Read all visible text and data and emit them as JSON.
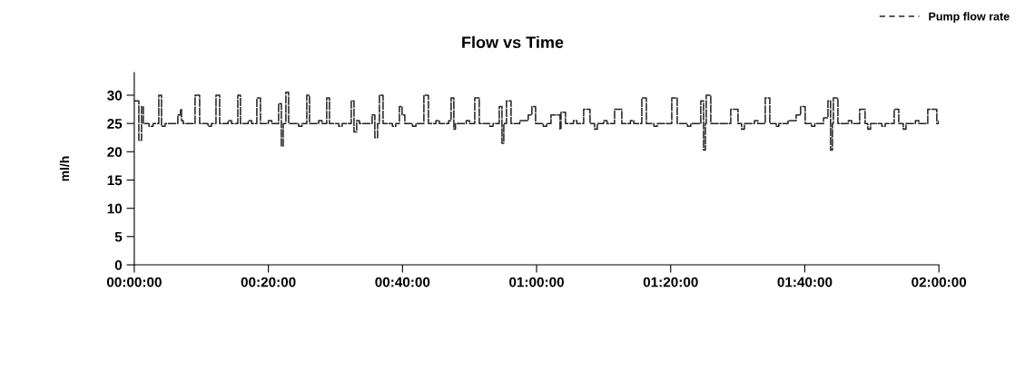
{
  "chart_data": {
    "type": "step",
    "title": "Flow vs Time",
    "ylabel": "ml/h",
    "xlim": [
      0,
      120
    ],
    "xticks": [
      {
        "value": 0,
        "label": "00:00:00"
      },
      {
        "value": 20,
        "label": "00:20:00"
      },
      {
        "value": 40,
        "label": "00:40:00"
      },
      {
        "value": 60,
        "label": "01:00:00"
      },
      {
        "value": 80,
        "label": "01:20:00"
      },
      {
        "value": 100,
        "label": "01:40:00"
      },
      {
        "value": 120,
        "label": "02:00:00"
      }
    ],
    "ylim": [
      0,
      34
    ],
    "yticks": [
      0,
      5,
      10,
      15,
      20,
      25,
      30
    ],
    "grid": false,
    "legend": "top right",
    "line_style": "dashed",
    "series": [
      {
        "name": "Pump flow rate",
        "color": "#222222",
        "x": [
          0,
          0.68,
          1.08,
          1.35,
          2.2,
          2.8,
          3.66,
          4.06,
          4.6,
          6.5,
          6.9,
          7.04,
          7.3,
          9.07,
          9.75,
          11,
          11.5,
          12.19,
          12.73,
          14,
          14.5,
          15.44,
          15.84,
          17,
          17.5,
          18.28,
          18.82,
          20,
          20.5,
          21.53,
          21.93,
          22.21,
          22.61,
          23.02,
          24.5,
          25,
          25.73,
          26.13,
          27.5,
          28,
          28.7,
          29.11,
          30.5,
          31,
          32.36,
          32.77,
          33.17,
          33.58,
          35.47,
          35.88,
          36.29,
          36.56,
          37.1,
          38.5,
          39,
          39.54,
          39.94,
          40.35,
          41.5,
          42,
          43.19,
          43.87,
          45,
          45.5,
          46.9,
          47.25,
          47.66,
          47.9,
          49.5,
          50,
          50.78,
          51.45,
          53,
          53.5,
          54.43,
          54.84,
          55.11,
          55.51,
          56.19,
          57.5,
          58.76,
          59.3,
          59.85,
          61,
          61.5,
          62.15,
          63.5,
          63.64,
          64.31,
          65.5,
          66,
          67.02,
          67.97,
          68.65,
          69.05,
          70,
          70.5,
          71.63,
          72.71,
          74,
          74.5,
          75.69,
          76.37,
          77.5,
          78,
          80.16,
          80.97,
          82.5,
          83,
          84.49,
          84.9,
          85.17,
          85.3,
          85.98,
          88.96,
          90.04,
          90.58,
          90.99,
          92.5,
          93,
          94.1,
          94.78,
          95.73,
          96.13,
          97.5,
          98.71,
          99.38,
          100.06,
          101,
          101.5,
          102.8,
          103.45,
          103.85,
          104.12,
          104.26,
          104.94,
          106.5,
          107,
          108.18,
          108.99,
          109.4,
          109.81,
          111.5,
          112,
          113.33,
          114.01,
          114.69,
          115.09,
          116.5,
          117,
          118.34,
          119.69,
          119.96
        ],
        "values": [
          29,
          22,
          28,
          25,
          24.5,
          25,
          30,
          24.5,
          25,
          26.5,
          27.5,
          25.5,
          25,
          30,
          25,
          24.5,
          25,
          30,
          25,
          25.5,
          25,
          30,
          25,
          25.5,
          25,
          29.5,
          25,
          25.5,
          25,
          28.5,
          21,
          25,
          30.5,
          25,
          24.5,
          25,
          30,
          25,
          25.5,
          25,
          29.5,
          25,
          24.5,
          25,
          29,
          23.5,
          25.5,
          25,
          26.5,
          22.5,
          25,
          30,
          25,
          24.5,
          25,
          28,
          26.5,
          25,
          24.5,
          25,
          30,
          25,
          25.5,
          25,
          25.5,
          29.5,
          24,
          25,
          25.5,
          25,
          29.5,
          25,
          24.5,
          25,
          28,
          21.5,
          25,
          29,
          25,
          25.5,
          26.5,
          28,
          25,
          24.5,
          25,
          26.5,
          24,
          27,
          25,
          25.5,
          25,
          27.5,
          25,
          24,
          25,
          25.5,
          25,
          27.5,
          25,
          25.5,
          25,
          29.5,
          25,
          24.5,
          25,
          29.5,
          25,
          24.5,
          25,
          29,
          20.3,
          25,
          30,
          25,
          27.5,
          25,
          24,
          25,
          25.5,
          25,
          29.5,
          25,
          24.5,
          25,
          25.5,
          26.5,
          28,
          25,
          24.5,
          25,
          26,
          29,
          20.3,
          25,
          29.5,
          25,
          25.5,
          25,
          27.5,
          25,
          24,
          25,
          24.5,
          25,
          27.5,
          25,
          24,
          25,
          25.5,
          25,
          27.5,
          25,
          25.5
        ]
      }
    ]
  }
}
